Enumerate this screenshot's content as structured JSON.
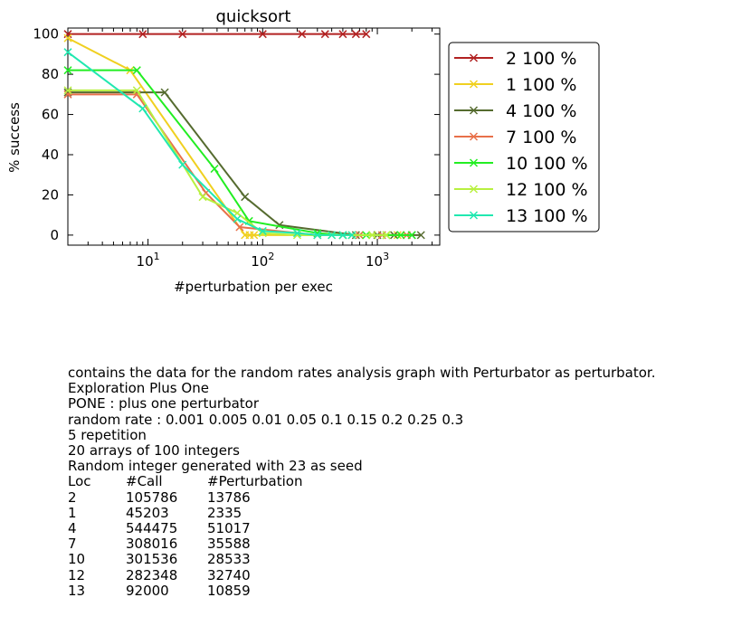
{
  "chart_data": {
    "type": "line",
    "title": "quicksort",
    "xlabel": "#perturbation per exec",
    "ylabel": "% success",
    "xscale": "log",
    "xlim": [
      2,
      3500
    ],
    "ylim": [
      -5,
      103
    ],
    "yticks": [
      0,
      20,
      40,
      60,
      80,
      100
    ],
    "xticks": [
      10,
      100,
      1000
    ],
    "xtick_labels": [
      {
        "base": "10",
        "exp": "1"
      },
      {
        "base": "10",
        "exp": "2"
      },
      {
        "base": "10",
        "exp": "3"
      }
    ],
    "grid": false,
    "legend": "outside-right",
    "marker": "x",
    "series": [
      {
        "name": "2 100 %",
        "color": "#b22222",
        "x": [
          2,
          9,
          20,
          100,
          220,
          350,
          500,
          650,
          800
        ],
        "y": [
          100,
          100,
          100,
          100,
          100,
          100,
          100,
          100,
          100
        ]
      },
      {
        "name": "1 100 %",
        "color": "#f0d020",
        "x": [
          2,
          7,
          70,
          77,
          84,
          700,
          900,
          1200,
          1500,
          1800
        ],
        "y": [
          98,
          82,
          0,
          0,
          0,
          0,
          0,
          0,
          0,
          0
        ]
      },
      {
        "name": "4 100 %",
        "color": "#556b2f",
        "x": [
          2,
          14,
          70,
          140,
          650,
          1000,
          1400,
          2000,
          2400
        ],
        "y": [
          71,
          71,
          19,
          5,
          0,
          0,
          0,
          0,
          0
        ]
      },
      {
        "name": "7 100 %",
        "color": "#e8704a",
        "x": [
          2,
          8,
          32,
          63,
          300,
          500,
          700,
          1100,
          1800
        ],
        "y": [
          70,
          70,
          21,
          4,
          0,
          0,
          0,
          0,
          0
        ]
      },
      {
        "name": "10 100 %",
        "color": "#22ee22",
        "x": [
          2,
          8,
          38,
          76,
          300,
          500,
          800,
          1200,
          1600,
          2000
        ],
        "y": [
          82,
          82,
          33,
          7,
          1,
          0,
          0,
          0,
          0,
          0
        ]
      },
      {
        "name": "12 100 %",
        "color": "#b8f040",
        "x": [
          2,
          8,
          30,
          60,
          100,
          200,
          400,
          600,
          900,
          1200
        ],
        "y": [
          72,
          72,
          19,
          11,
          1,
          0,
          0,
          0,
          0,
          0
        ]
      },
      {
        "name": "13 100 %",
        "color": "#20e8b0",
        "x": [
          2,
          9,
          20,
          60,
          100,
          200,
          300,
          400,
          500,
          600
        ],
        "y": [
          91,
          63,
          35,
          8,
          2,
          1,
          0,
          0,
          0,
          0
        ]
      }
    ]
  },
  "description": {
    "lines": [
      "contains the data for the random rates analysis graph with Perturbator as perturbator.",
      "Exploration Plus One",
      "PONE : plus one perturbator",
      "random rate : 0.001 0.005 0.01 0.05 0.1 0.15 0.2 0.25 0.3",
      "5 repetition",
      "20 arrays of 100 integers",
      "Random integer generated with 23 as seed"
    ],
    "table": {
      "headers": [
        "Loc",
        "#Call",
        "#Perturbation"
      ],
      "rows": [
        [
          "2",
          "105786",
          "13786"
        ],
        [
          "1",
          "45203",
          "2335"
        ],
        [
          "4",
          "544475",
          "51017"
        ],
        [
          "7",
          "308016",
          "35588"
        ],
        [
          "10",
          "301536",
          "28533"
        ],
        [
          "12",
          "282348",
          "32740"
        ],
        [
          "13",
          "92000",
          "10859"
        ]
      ]
    }
  }
}
